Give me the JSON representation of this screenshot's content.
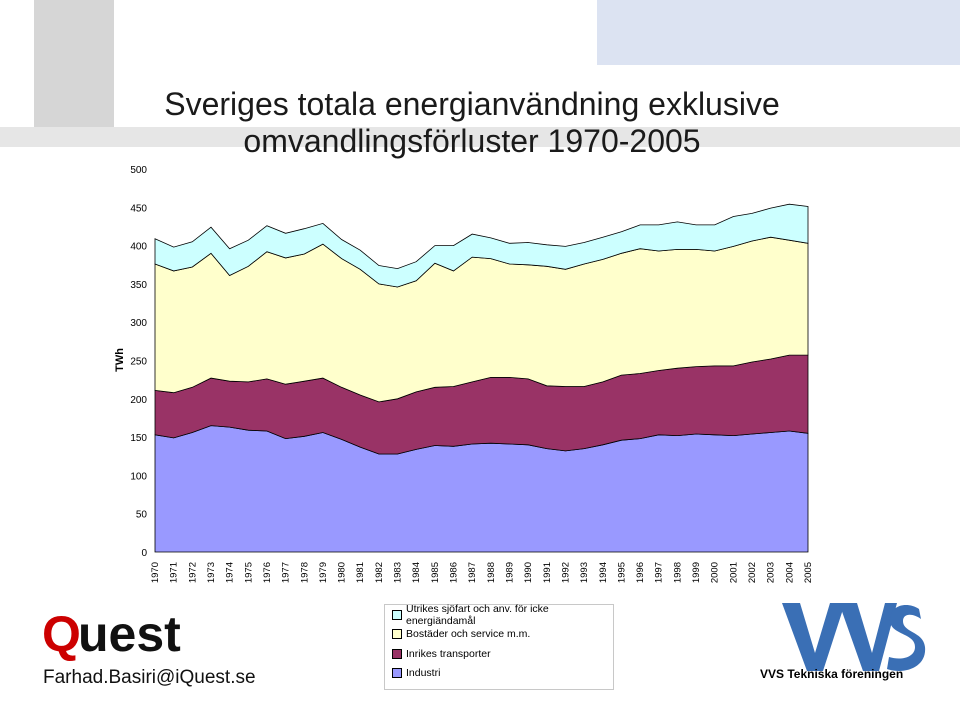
{
  "chart_data": {
    "type": "area",
    "stacked": true,
    "title": "Sveriges totala energianvändning exklusive omvandlingsförluster 1970-2005",
    "ylabel": "TWh",
    "xlabel": "",
    "ylim": [
      0,
      500
    ],
    "yticks": [
      0,
      50,
      100,
      150,
      200,
      250,
      300,
      350,
      400,
      450,
      500
    ],
    "grid": false,
    "legend_position": "bottom",
    "categories": [
      "1970",
      "1971",
      "1972",
      "1973",
      "1974",
      "1975",
      "1976",
      "1977",
      "1978",
      "1979",
      "1980",
      "1981",
      "1982",
      "1983",
      "1984",
      "1985",
      "1986",
      "1987",
      "1988",
      "1989",
      "1990",
      "1991",
      "1992",
      "1993",
      "1994",
      "1995",
      "1996",
      "1997",
      "1998",
      "1999",
      "2000",
      "2001",
      "2002",
      "2003",
      "2004",
      "2005"
    ],
    "series": [
      {
        "name": "Industri",
        "color": "#9999ff",
        "values": [
          153,
          149,
          156,
          165,
          163,
          159,
          158,
          148,
          151,
          156,
          147,
          137,
          128,
          128,
          134,
          139,
          138,
          141,
          142,
          141,
          140,
          135,
          132,
          135,
          140,
          146,
          148,
          153,
          152,
          154,
          153,
          152,
          154,
          156,
          158,
          155
        ]
      },
      {
        "name": "Inrikes transporter",
        "color": "#993366",
        "values": [
          58,
          59,
          59,
          62,
          60,
          63,
          68,
          71,
          72,
          71,
          68,
          68,
          68,
          72,
          75,
          76,
          78,
          81,
          86,
          87,
          86,
          82,
          84,
          81,
          82,
          85,
          85,
          84,
          88,
          88,
          90,
          91,
          94,
          96,
          99,
          102
        ]
      },
      {
        "name": "Bostäder och service m.m.",
        "color": "#ffffcc",
        "values": [
          165,
          159,
          157,
          163,
          138,
          151,
          166,
          165,
          166,
          175,
          168,
          164,
          154,
          146,
          145,
          162,
          151,
          163,
          155,
          148,
          149,
          156,
          153,
          160,
          160,
          159,
          163,
          156,
          155,
          153,
          150,
          156,
          158,
          159,
          150,
          146
        ]
      },
      {
        "name": "Utrikes sjöfart och anv. för icke energiändamål",
        "color": "#ccffff",
        "values": [
          33,
          31,
          33,
          34,
          35,
          34,
          34,
          32,
          33,
          27,
          25,
          25,
          24,
          24,
          25,
          23,
          33,
          30,
          27,
          27,
          29,
          28,
          30,
          28,
          29,
          28,
          31,
          34,
          36,
          32,
          34,
          39,
          36,
          38,
          47,
          48
        ]
      }
    ]
  },
  "footer": {
    "logo_q": "Q",
    "logo_rest": "uest",
    "email": "Farhad.Basiri@iQuest.se",
    "vvs_name": "VVS Tekniska föreningen"
  }
}
